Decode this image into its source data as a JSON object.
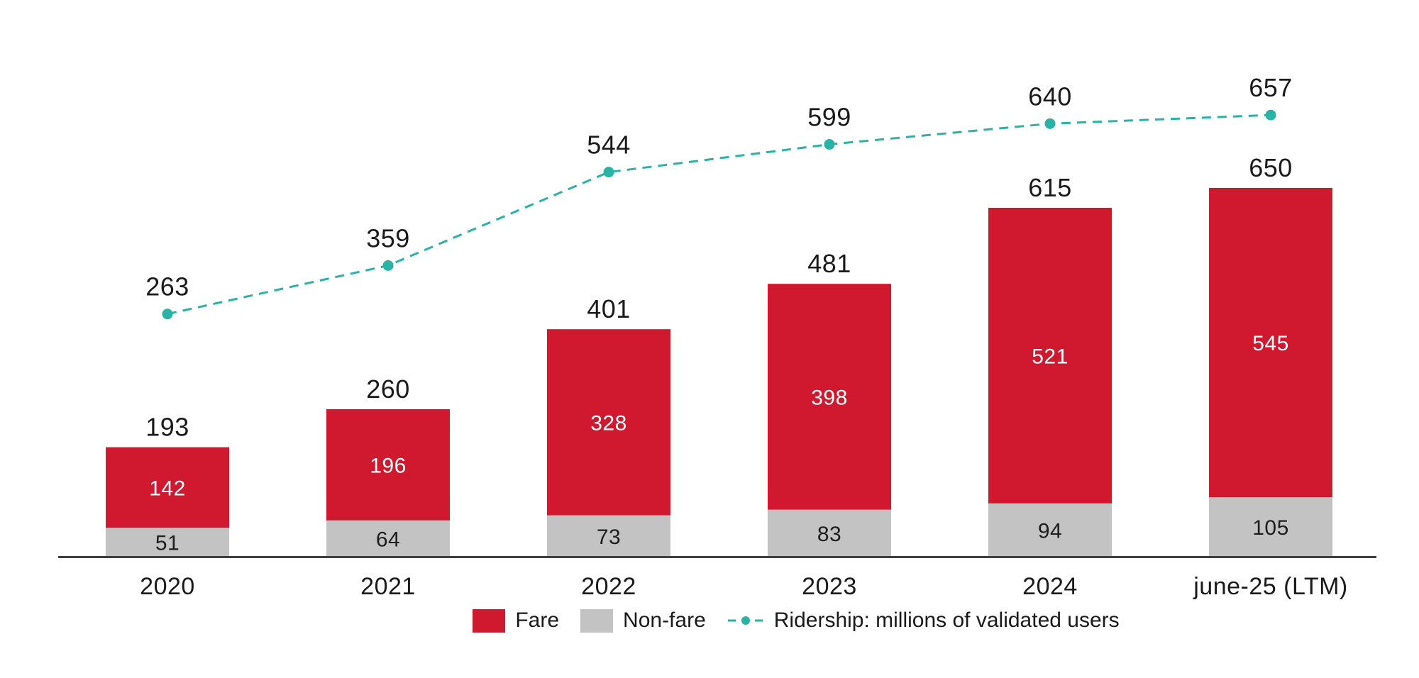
{
  "chart_data": {
    "type": "bar",
    "variant": "stacked-column-with-line",
    "title": "",
    "xlabel": "",
    "ylabel": "",
    "grid": false,
    "legend_position": "bottom",
    "background": "#ffffff",
    "axis_line_color": "#3f3f3f",
    "text_color": "#1a1a1a",
    "categories": [
      "2020",
      "2021",
      "2022",
      "2023",
      "2024",
      "june-25 (LTM)"
    ],
    "series": [
      {
        "key": "fare",
        "name": "Fare",
        "type": "bar",
        "color": "#d0182e",
        "label_color": "#ffffff",
        "values": [
          142,
          196,
          328,
          398,
          521,
          545
        ]
      },
      {
        "key": "non-fare",
        "name": "Non-fare",
        "type": "bar",
        "color": "#c3c3c3",
        "label_color": "#1d1d1d",
        "values": [
          51,
          64,
          73,
          83,
          94,
          105
        ]
      },
      {
        "key": "ridership",
        "name": "Ridership: millions of validated users",
        "type": "line",
        "color": "#29b2a6",
        "label_color": "#1a1a1a",
        "values": [
          263,
          359,
          544,
          599,
          640,
          657
        ]
      }
    ],
    "stack_totals": [
      193,
      260,
      401,
      481,
      615,
      650
    ]
  }
}
